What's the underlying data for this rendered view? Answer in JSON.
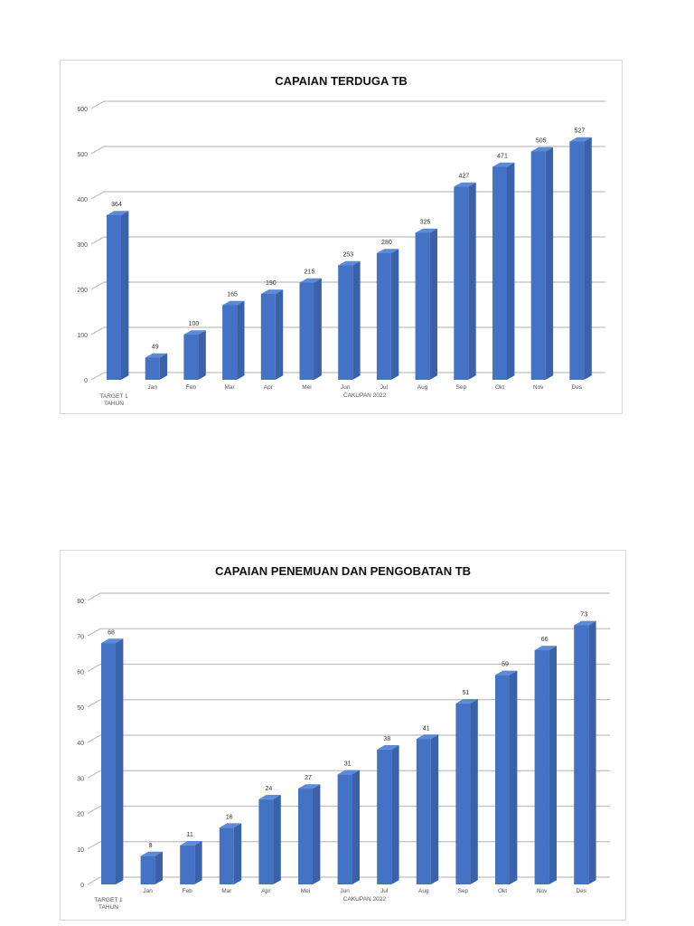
{
  "chart_data": [
    {
      "type": "bar",
      "title": "CAPAIAN TERDUGA TB",
      "categories": [
        "TARGET 1 TAHUN",
        "Jan",
        "Feb",
        "Mar",
        "Apr",
        "Mei",
        "Jun",
        "Jul",
        "Aug",
        "Sep",
        "Okt",
        "Nov",
        "Des"
      ],
      "values": [
        364,
        49,
        100,
        165,
        190,
        215,
        253,
        280,
        325,
        427,
        471,
        505,
        527
      ],
      "xlabel": "CAKUPAN 2022",
      "ylabel": "",
      "ylim": [
        0,
        600
      ],
      "yticks": [
        0,
        100,
        200,
        300,
        400,
        500,
        600
      ],
      "grid": true,
      "style": "3d-column",
      "bar_color": "#4472C4",
      "data_labels": true,
      "legend": "none"
    },
    {
      "type": "bar",
      "title": "CAPAIAN PENEMUAN DAN PENGOBATAN TB",
      "categories": [
        "TARGET 1 TAHUN",
        "Jan",
        "Feb",
        "Mar",
        "Apr",
        "Mei",
        "Jun",
        "Jul",
        "Aug",
        "Sep",
        "Okt",
        "Nov",
        "Des"
      ],
      "values": [
        68,
        8,
        11,
        16,
        24,
        27,
        31,
        38,
        41,
        51,
        59,
        66,
        73
      ],
      "xlabel": "CAKUPAN 2022",
      "ylabel": "",
      "ylim": [
        0,
        80
      ],
      "yticks": [
        0,
        10,
        20,
        30,
        40,
        50,
        60,
        70,
        80
      ],
      "grid": true,
      "style": "3d-column",
      "bar_color": "#4472C4",
      "data_labels": true,
      "legend": "none"
    }
  ],
  "colors": {
    "bar_front": "#4472C4",
    "bar_side": "#3A62AA",
    "bar_top": "#5B8AD6",
    "grid": "#bfbfbf",
    "frame": "#d9d9d9"
  }
}
